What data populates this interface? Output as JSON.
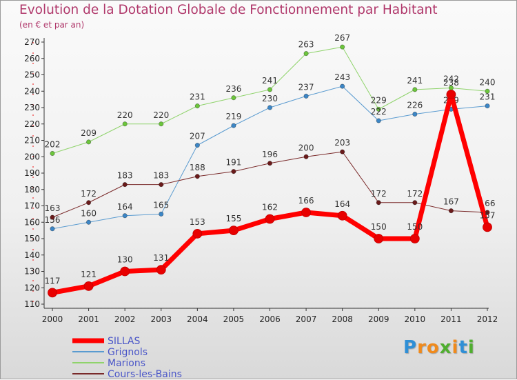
{
  "chart_data": {
    "type": "line",
    "title": "Evolution de la Dotation Globale de Fonctionnement par Habitant",
    "subtitle": "(en € et par an)",
    "xlabel": "",
    "ylabel": "",
    "x": [
      "2000",
      "2001",
      "2002",
      "2003",
      "2004",
      "2005",
      "2006",
      "2007",
      "2008",
      "2009",
      "2010",
      "2011",
      "2012"
    ],
    "ylim": [
      110,
      270
    ],
    "yticks": [
      110,
      120,
      130,
      140,
      150,
      160,
      170,
      180,
      190,
      200,
      210,
      220,
      230,
      240,
      250,
      260,
      270
    ],
    "grid": false,
    "legend_position": "bottom-left",
    "series": [
      {
        "name": "Marions",
        "color": "#8fd36b",
        "marker": "#6cc63c",
        "width": 1,
        "values": [
          202,
          209,
          220,
          220,
          231,
          236,
          241,
          263,
          267,
          229,
          241,
          242,
          240
        ]
      },
      {
        "name": "Grignols",
        "color": "#5a9bd0",
        "marker": "#3c86c6",
        "width": 1,
        "values": [
          156,
          160,
          164,
          165,
          207,
          219,
          230,
          237,
          243,
          222,
          226,
          229,
          231
        ]
      },
      {
        "name": "Cours-les-Bains",
        "color": "#7a2a2a",
        "marker": "#6a1a1a",
        "width": 1,
        "values": [
          163,
          172,
          183,
          183,
          188,
          191,
          196,
          200,
          203,
          172,
          172,
          167,
          166
        ]
      },
      {
        "name": "SILLAS",
        "color": "#ff0000",
        "marker": "#e80000",
        "width": 7,
        "values": [
          117,
          121,
          130,
          131,
          153,
          155,
          162,
          166,
          164,
          150,
          150,
          238,
          157
        ]
      }
    ],
    "legend_order": [
      "SILLAS",
      "Grignols",
      "Marions",
      "Cours-les-Bains"
    ]
  },
  "logo": {
    "letters": [
      {
        "ch": "P",
        "color": "#2f8fd6"
      },
      {
        "ch": "r",
        "color": "#f08a1c"
      },
      {
        "ch": "o",
        "color": "#f08a1c"
      },
      {
        "ch": "x",
        "color": "#4fae2f"
      },
      {
        "ch": "i",
        "color": "#f08a1c"
      },
      {
        "ch": "t",
        "color": "#2f8fd6"
      },
      {
        "ch": "i",
        "color": "#4fae2f"
      }
    ]
  }
}
